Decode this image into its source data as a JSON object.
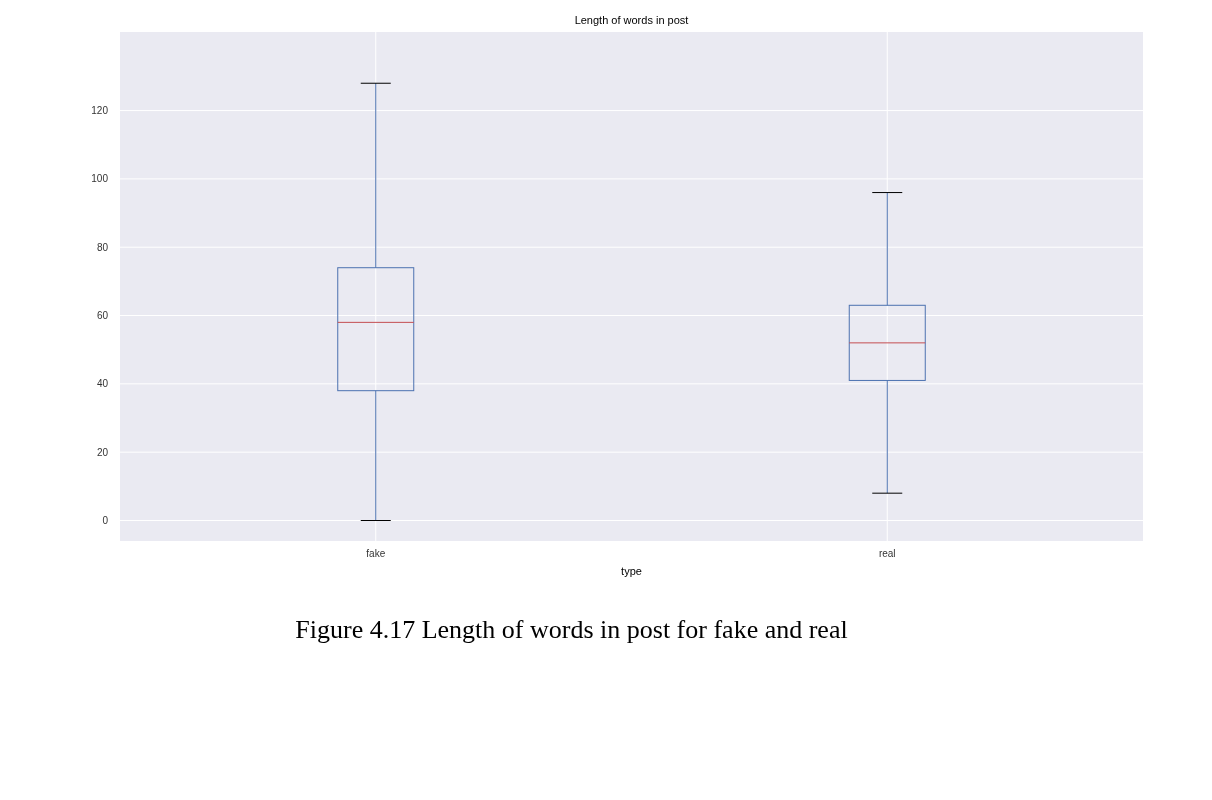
{
  "chart_data": {
    "type": "box",
    "title": "Length of words in post",
    "xlabel": "type",
    "categories": [
      "fake",
      "real"
    ],
    "series": [
      {
        "color": "#4c72b0",
        "boxes": [
          {
            "low": 0,
            "q1": 38,
            "median": 58,
            "q3": 74,
            "high": 128
          },
          {
            "low": 8,
            "q1": 41,
            "median": 52,
            "q3": 63,
            "high": 96
          }
        ]
      }
    ],
    "ylim": [
      -6,
      143
    ],
    "yticks": [
      0,
      20,
      40,
      60,
      80,
      100,
      120
    ],
    "grid": true,
    "annotations": [
      "Figure 4.17 Length of words in post for fake and real"
    ]
  }
}
